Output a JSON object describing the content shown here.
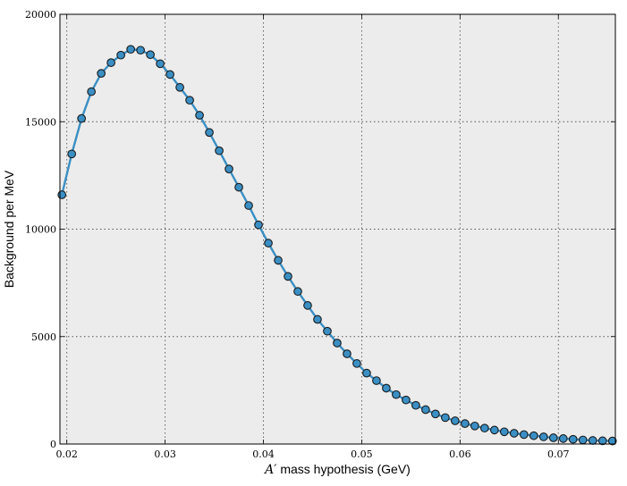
{
  "chart_data": {
    "type": "line",
    "title": "",
    "xlabel_prefix": "A′",
    "xlabel_rest": " mass hypothesis (GeV)",
    "ylabel": "Background per MeV",
    "xlim": [
      0.0193,
      0.0758
    ],
    "ylim": [
      0,
      20000
    ],
    "xticks": [
      0.02,
      0.03,
      0.04,
      0.05,
      0.06,
      0.07
    ],
    "xtick_labels": [
      "0.02",
      "0.03",
      "0.04",
      "0.05",
      "0.06",
      "0.07"
    ],
    "yticks": [
      0,
      5000,
      10000,
      15000,
      20000
    ],
    "ytick_labels": [
      "0",
      "5000",
      "10000",
      "15000",
      "20000"
    ],
    "grid": true,
    "series": [
      {
        "name": "background",
        "color": "#3a8fc4",
        "x": [
          0.0195,
          0.0205,
          0.0215,
          0.0225,
          0.0235,
          0.0245,
          0.0255,
          0.0265,
          0.0275,
          0.0285,
          0.0295,
          0.0305,
          0.0315,
          0.0325,
          0.0335,
          0.0345,
          0.0355,
          0.0365,
          0.0375,
          0.0385,
          0.0395,
          0.0405,
          0.0415,
          0.0425,
          0.0435,
          0.0445,
          0.0455,
          0.0465,
          0.0475,
          0.0485,
          0.0495,
          0.0505,
          0.0515,
          0.0525,
          0.0535,
          0.0545,
          0.0555,
          0.0565,
          0.0575,
          0.0585,
          0.0595,
          0.0605,
          0.0615,
          0.0625,
          0.0635,
          0.0645,
          0.0655,
          0.0665,
          0.0675,
          0.0685,
          0.0695,
          0.0705,
          0.0715,
          0.0725,
          0.0735,
          0.0745,
          0.0755
        ],
        "y": [
          11600,
          13500,
          15150,
          16400,
          17250,
          17750,
          18100,
          18370,
          18330,
          18120,
          17700,
          17200,
          16600,
          16000,
          15300,
          14500,
          13650,
          12800,
          11950,
          11100,
          10200,
          9350,
          8550,
          7800,
          7100,
          6450,
          5800,
          5250,
          4700,
          4200,
          3750,
          3300,
          2950,
          2600,
          2300,
          2050,
          1800,
          1600,
          1400,
          1230,
          1080,
          950,
          840,
          740,
          650,
          570,
          500,
          440,
          385,
          335,
          290,
          255,
          220,
          190,
          165,
          150,
          140
        ]
      }
    ]
  }
}
